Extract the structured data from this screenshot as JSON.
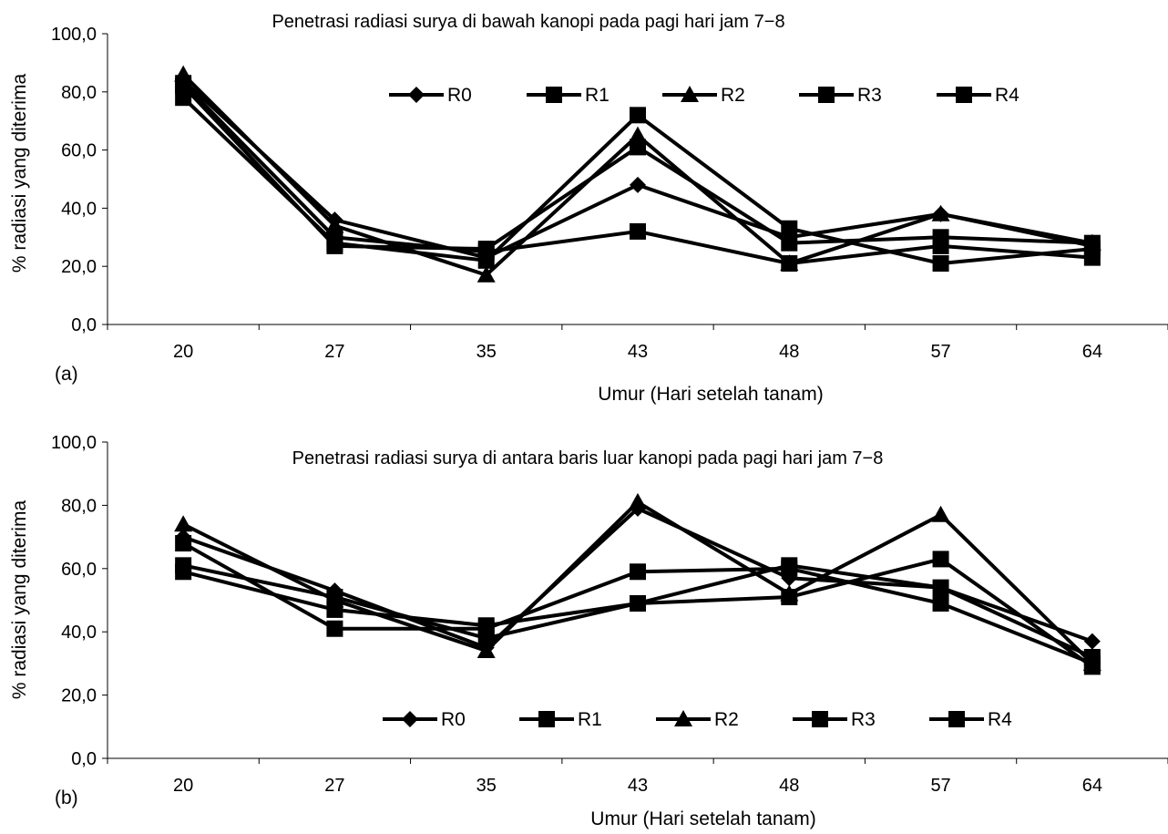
{
  "chart_data": [
    {
      "panel_label": "(a)",
      "type": "line",
      "title": "Penetrasi radiasi surya di bawah kanopi pada pagi hari jam 7−8",
      "xlabel": "Umur (Hari setelah tanam)",
      "ylabel": "% radiasi yang diterima",
      "categories": [
        "20",
        "27",
        "35",
        "43",
        "48",
        "57",
        "64"
      ],
      "ylim": [
        0,
        100
      ],
      "yticks": [
        "0,0",
        "20,0",
        "40,0",
        "60,0",
        "80,0",
        "100,0"
      ],
      "grid": false,
      "legend_position": "top-center",
      "series": [
        {
          "name": "R0",
          "marker": "diamond",
          "values": [
            84,
            36,
            23,
            48,
            30,
            38,
            27
          ]
        },
        {
          "name": "R1",
          "marker": "square",
          "values": [
            78,
            28,
            22,
            72,
            33,
            21,
            26
          ]
        },
        {
          "name": "R2",
          "marker": "triangle",
          "values": [
            86,
            34,
            17,
            65,
            21,
            38,
            28
          ]
        },
        {
          "name": "R3",
          "marker": "square",
          "values": [
            82,
            27,
            26,
            61,
            28,
            30,
            28
          ]
        },
        {
          "name": "R4",
          "marker": "square",
          "values": [
            83,
            30,
            25,
            32,
            21,
            27,
            23
          ]
        }
      ]
    },
    {
      "panel_label": "(b)",
      "type": "line",
      "title": "Penetrasi radiasi surya di antara baris luar kanopi pada pagi hari jam 7−8",
      "xlabel": "Umur (Hari setelah tanam)",
      "ylabel": "% radiasi yang diterima",
      "categories": [
        "20",
        "27",
        "35",
        "43",
        "48",
        "57",
        "64"
      ],
      "ylim": [
        0,
        100
      ],
      "yticks": [
        "0,0",
        "20,0",
        "40,0",
        "60,0",
        "80,0",
        "100,0"
      ],
      "grid": false,
      "legend_position": "bottom-center",
      "series": [
        {
          "name": "R0",
          "marker": "diamond",
          "values": [
            70,
            53,
            35,
            79,
            57,
            54,
            37
          ]
        },
        {
          "name": "R1",
          "marker": "square",
          "values": [
            68,
            41,
            41,
            59,
            60,
            49,
            30
          ]
        },
        {
          "name": "R2",
          "marker": "triangle",
          "values": [
            74,
            50,
            34,
            81,
            52,
            77,
            30
          ]
        },
        {
          "name": "R3",
          "marker": "square",
          "values": [
            59,
            47,
            42,
            49,
            51,
            63,
            29
          ]
        },
        {
          "name": "R4",
          "marker": "square",
          "values": [
            61,
            51,
            38,
            49,
            61,
            54,
            32
          ]
        }
      ]
    }
  ]
}
